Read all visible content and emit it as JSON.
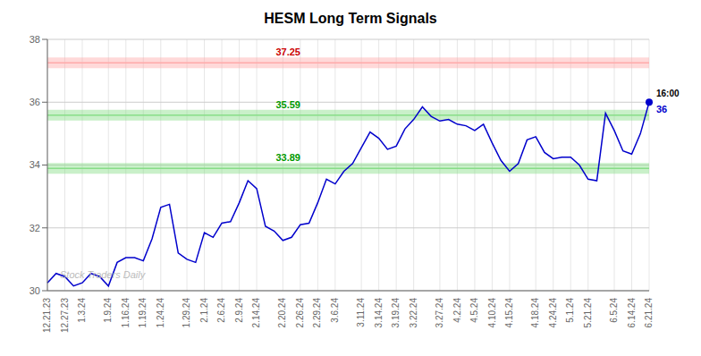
{
  "chart_data": {
    "type": "line",
    "title": "HESM Long Term Signals",
    "color": "#0000cc",
    "grid": true,
    "ylim": [
      30,
      38
    ],
    "yticks": [
      30,
      32,
      34,
      36,
      38
    ],
    "categories": [
      "12.21.23",
      null,
      "12.27.23",
      null,
      "1.3.24",
      null,
      null,
      "1.9.24",
      null,
      "1.16.24",
      null,
      "1.19.24",
      null,
      "1.24.24",
      null,
      null,
      "1.29.24",
      null,
      "2.1.24",
      null,
      "2.6.24",
      null,
      "2.9.24",
      null,
      "2.14.24",
      null,
      null,
      "2.20.24",
      null,
      "2.26.24",
      null,
      "2.29.24",
      null,
      "3.6.24",
      null,
      null,
      "3.11.24",
      null,
      "3.14.24",
      null,
      "3.19.24",
      null,
      "3.22.24",
      null,
      null,
      "3.27.24",
      null,
      "4.2.24",
      null,
      "4.5.24",
      null,
      "4.10.24",
      null,
      "4.15.24",
      null,
      null,
      "4.18.24",
      null,
      "4.24.24",
      null,
      "5.1.24",
      null,
      "5.21.24",
      null,
      null,
      "6.5.24",
      null,
      "6.14.24",
      null,
      "6.21.24"
    ],
    "values": [
      30.25,
      30.55,
      30.45,
      30.15,
      30.25,
      30.55,
      30.45,
      30.15,
      30.9,
      31.05,
      31.05,
      30.95,
      31.65,
      32.65,
      32.75,
      31.2,
      31.0,
      30.9,
      31.85,
      31.7,
      32.15,
      32.2,
      32.8,
      33.5,
      33.25,
      32.05,
      31.9,
      31.6,
      31.7,
      32.1,
      32.15,
      32.8,
      33.55,
      33.4,
      33.8,
      34.05,
      34.55,
      35.05,
      34.85,
      34.5,
      34.6,
      35.15,
      35.45,
      35.85,
      35.55,
      35.4,
      35.45,
      35.3,
      35.25,
      35.1,
      35.3,
      34.7,
      34.15,
      33.8,
      34.05,
      34.8,
      34.9,
      34.4,
      34.2,
      34.25,
      34.25,
      34.0,
      33.55,
      33.5,
      35.65,
      35.1,
      34.45,
      34.35,
      35.0,
      36.0
    ],
    "reference_lines": [
      {
        "value": 37.25,
        "label": "37.25",
        "color": "#ffaaaa",
        "label_color": "#cc0000"
      },
      {
        "value": 35.59,
        "label": "35.59",
        "color": "#88dd88",
        "label_color": "#009900"
      },
      {
        "value": 33.89,
        "label": "33.89",
        "color": "#88dd88",
        "label_color": "#009900"
      }
    ],
    "end_labels": [
      "16:00",
      "36"
    ],
    "annotations": [
      {
        "text": "Stock Traders Daily",
        "color": "#bbbbbb"
      }
    ]
  }
}
